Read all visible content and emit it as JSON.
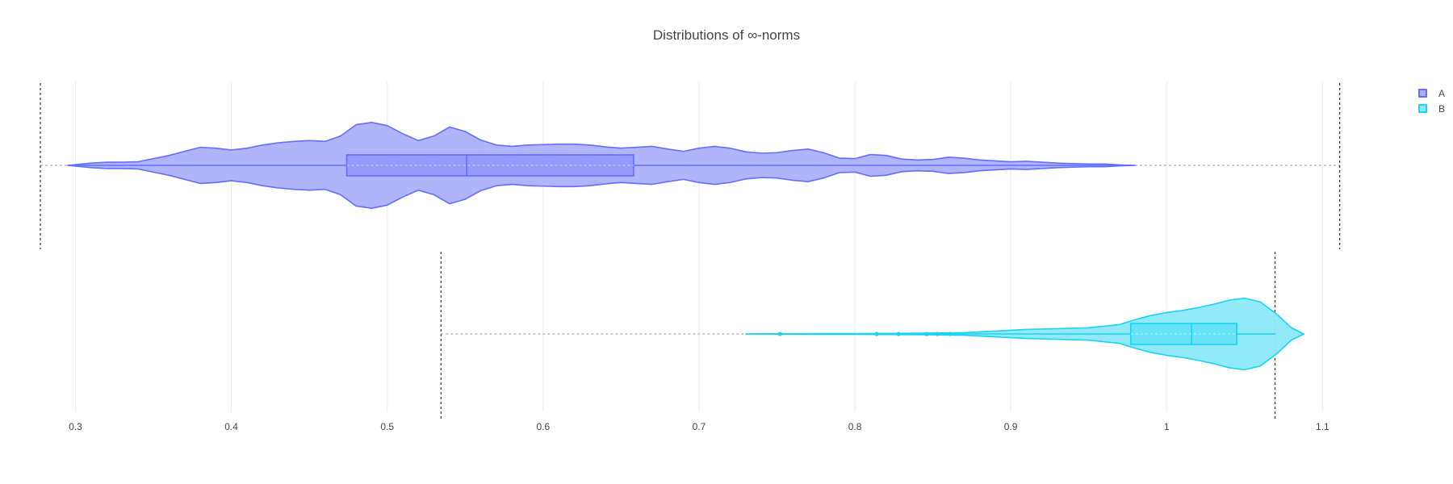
{
  "chart_data": {
    "type": "violin",
    "title": "Distributions of ∞-norms",
    "orientation": "horizontal",
    "xlim": [
      0.278,
      1.178
    ],
    "x_ticks": [
      0.3,
      0.4,
      0.5,
      0.6,
      0.7,
      0.8,
      0.9,
      1,
      1.1
    ],
    "x_tick_labels": [
      "0.3",
      "0.4",
      "0.5",
      "0.6",
      "0.7",
      "0.8",
      "0.9",
      "1",
      "1.1"
    ],
    "grid": true,
    "legend_placement": "top-right",
    "series": [
      {
        "name": "A",
        "line_color": "#636efa",
        "fill_color": "#abb0fb",
        "box": {
          "q1": 0.474,
          "median": 0.551,
          "q3": 0.658,
          "lower_fence": 0.298,
          "upper_fence": 0.978
        },
        "mean": 0.55,
        "mean_minus_3sd": 0.2775,
        "mean_plus_3sd": 1.111,
        "kde_min": 0.295,
        "kde_max": 0.98,
        "density": [
          [
            0.295,
            0.0
          ],
          [
            0.31,
            0.05
          ],
          [
            0.32,
            0.07
          ],
          [
            0.33,
            0.07
          ],
          [
            0.34,
            0.08
          ],
          [
            0.35,
            0.15
          ],
          [
            0.36,
            0.22
          ],
          [
            0.37,
            0.31
          ],
          [
            0.38,
            0.4
          ],
          [
            0.39,
            0.38
          ],
          [
            0.4,
            0.34
          ],
          [
            0.41,
            0.38
          ],
          [
            0.42,
            0.45
          ],
          [
            0.43,
            0.5
          ],
          [
            0.44,
            0.53
          ],
          [
            0.45,
            0.55
          ],
          [
            0.46,
            0.53
          ],
          [
            0.47,
            0.65
          ],
          [
            0.48,
            0.9
          ],
          [
            0.49,
            0.95
          ],
          [
            0.5,
            0.88
          ],
          [
            0.51,
            0.7
          ],
          [
            0.52,
            0.55
          ],
          [
            0.53,
            0.65
          ],
          [
            0.54,
            0.85
          ],
          [
            0.55,
            0.75
          ],
          [
            0.56,
            0.56
          ],
          [
            0.57,
            0.45
          ],
          [
            0.58,
            0.42
          ],
          [
            0.59,
            0.45
          ],
          [
            0.6,
            0.46
          ],
          [
            0.61,
            0.47
          ],
          [
            0.62,
            0.47
          ],
          [
            0.63,
            0.45
          ],
          [
            0.64,
            0.41
          ],
          [
            0.65,
            0.38
          ],
          [
            0.66,
            0.4
          ],
          [
            0.67,
            0.42
          ],
          [
            0.68,
            0.36
          ],
          [
            0.69,
            0.31
          ],
          [
            0.7,
            0.38
          ],
          [
            0.71,
            0.42
          ],
          [
            0.72,
            0.38
          ],
          [
            0.73,
            0.3
          ],
          [
            0.74,
            0.27
          ],
          [
            0.75,
            0.28
          ],
          [
            0.76,
            0.33
          ],
          [
            0.77,
            0.36
          ],
          [
            0.78,
            0.28
          ],
          [
            0.79,
            0.16
          ],
          [
            0.8,
            0.15
          ],
          [
            0.81,
            0.24
          ],
          [
            0.82,
            0.22
          ],
          [
            0.83,
            0.14
          ],
          [
            0.84,
            0.12
          ],
          [
            0.85,
            0.13
          ],
          [
            0.86,
            0.18
          ],
          [
            0.87,
            0.16
          ],
          [
            0.88,
            0.12
          ],
          [
            0.89,
            0.1
          ],
          [
            0.9,
            0.08
          ],
          [
            0.91,
            0.09
          ],
          [
            0.92,
            0.07
          ],
          [
            0.93,
            0.05
          ],
          [
            0.94,
            0.04
          ],
          [
            0.95,
            0.03
          ],
          [
            0.96,
            0.03
          ],
          [
            0.97,
            0.01
          ],
          [
            0.98,
            0.0
          ]
        ]
      },
      {
        "name": "B",
        "line_color": "#19d3f3",
        "fill_color": "#8ce9f9",
        "box": {
          "q1": 0.977,
          "median": 1.016,
          "q3": 1.045,
          "lower_fence": 0.877,
          "upper_fence": 1.07
        },
        "points": [
          0.752,
          0.814,
          0.828,
          0.846,
          0.853,
          0.861
        ],
        "mean": 0.99,
        "mean_minus_3sd": 0.5345,
        "mean_plus_3sd": 1.0695,
        "kde_min": 0.73,
        "kde_max": 1.088,
        "density": [
          [
            0.73,
            0.0
          ],
          [
            0.75,
            0.005
          ],
          [
            0.8,
            0.01
          ],
          [
            0.85,
            0.02
          ],
          [
            0.87,
            0.03
          ],
          [
            0.89,
            0.07
          ],
          [
            0.91,
            0.11
          ],
          [
            0.93,
            0.13
          ],
          [
            0.95,
            0.15
          ],
          [
            0.97,
            0.23
          ],
          [
            0.98,
            0.35
          ],
          [
            0.99,
            0.45
          ],
          [
            1.0,
            0.52
          ],
          [
            1.01,
            0.57
          ],
          [
            1.02,
            0.64
          ],
          [
            1.03,
            0.72
          ],
          [
            1.04,
            0.82
          ],
          [
            1.05,
            0.87
          ],
          [
            1.06,
            0.78
          ],
          [
            1.07,
            0.5
          ],
          [
            1.08,
            0.15
          ],
          [
            1.088,
            0.0
          ]
        ]
      }
    ]
  }
}
